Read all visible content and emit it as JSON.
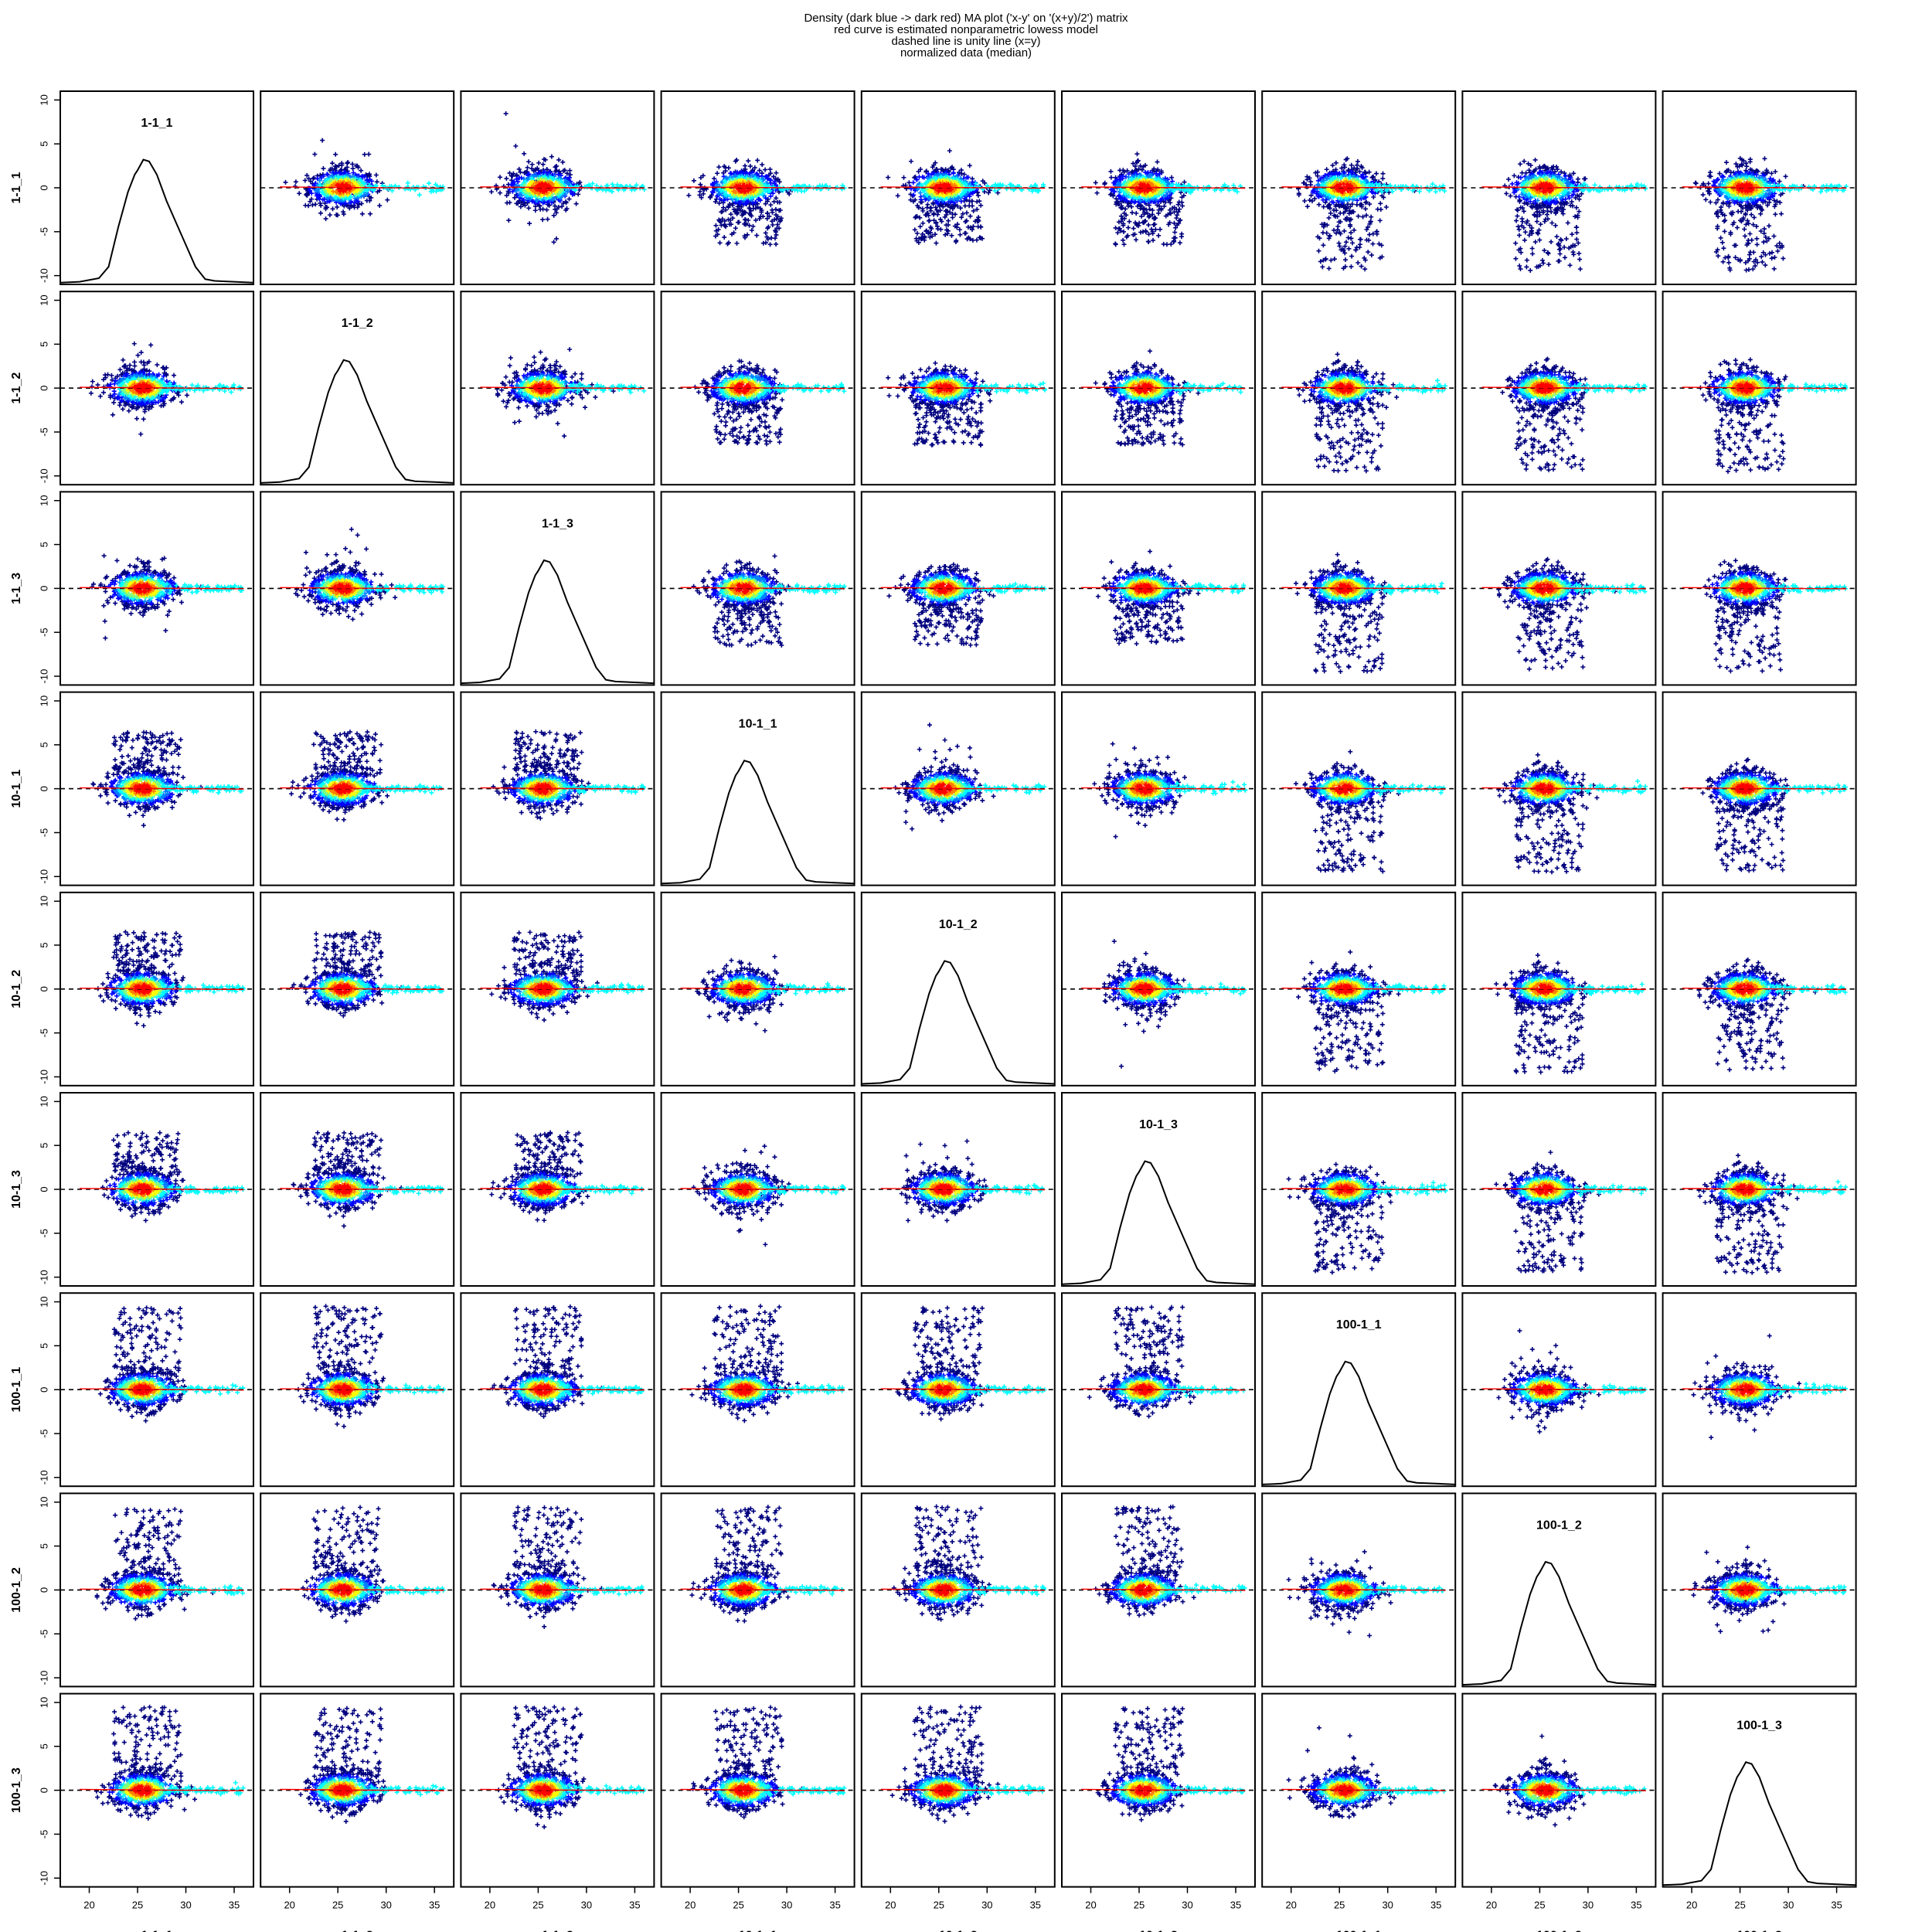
{
  "title_lines": [
    "Density (dark blue -> dark red) MA plot ('x-y' on '(x+y)/2') matrix",
    "red curve is estimated nonparametric lowess model",
    "dashed line is unity line (x=y)",
    "normalized data (median)"
  ],
  "chart_data": {
    "type": "scatter",
    "subtype": "MA-plot matrix with density coloring, diagonal shows kernel density",
    "samples": [
      "1-1_1",
      "1-1_2",
      "1-1_3",
      "10-1_1",
      "10-1_2",
      "10-1_3",
      "100-1_1",
      "100-1_2",
      "100-1_3"
    ],
    "groups": {
      "1-1": [
        0,
        1,
        2
      ],
      "10-1": [
        3,
        4,
        5
      ],
      "100-1": [
        6,
        7,
        8
      ]
    },
    "x_axis": {
      "ticks": [
        20,
        25,
        30,
        35
      ],
      "xlim": [
        17,
        37
      ]
    },
    "y_axis": {
      "ticks": [
        10,
        5,
        0,
        -5,
        -10
      ],
      "ylim": [
        -11,
        11
      ]
    },
    "diagonal": {
      "type": "density",
      "x": [
        17,
        19,
        21,
        22,
        23,
        24,
        24.7,
        25,
        25.6,
        26.2,
        27,
        28,
        29,
        30,
        31,
        32,
        33,
        35,
        37
      ],
      "y": [
        -10.8,
        -10.7,
        -10.3,
        -9,
        -4.5,
        -0.5,
        1.5,
        2,
        3.2,
        3,
        1.5,
        -1.5,
        -4,
        -6.5,
        -9,
        -10.4,
        -10.6,
        -10.7,
        -10.8
      ]
    },
    "offdiagonal": {
      "cloud_center_x": 25.5,
      "same_group_spread": {
        "x": [
          20,
          34
        ],
        "y": [
          -4.5,
          4.5
        ]
      },
      "cross_group_outliers": {
        "1-1 vs 10-1": [
          -7,
          7
        ],
        "1-1 vs 100-1": [
          -10,
          10
        ],
        "10-1 vs 100-1": [
          -10,
          10
        ]
      }
    },
    "unity_line": {
      "y": 0,
      "style": "dashed",
      "color": "#000000"
    },
    "lowess_curve": {
      "y": 0,
      "color": "#ff0000"
    },
    "density_colors": [
      "#00007f",
      "#0000ff",
      "#007fff",
      "#00ffff",
      "#7fff7f",
      "#ffff00",
      "#ff7f00",
      "#ff0000",
      "#7f0000"
    ]
  }
}
